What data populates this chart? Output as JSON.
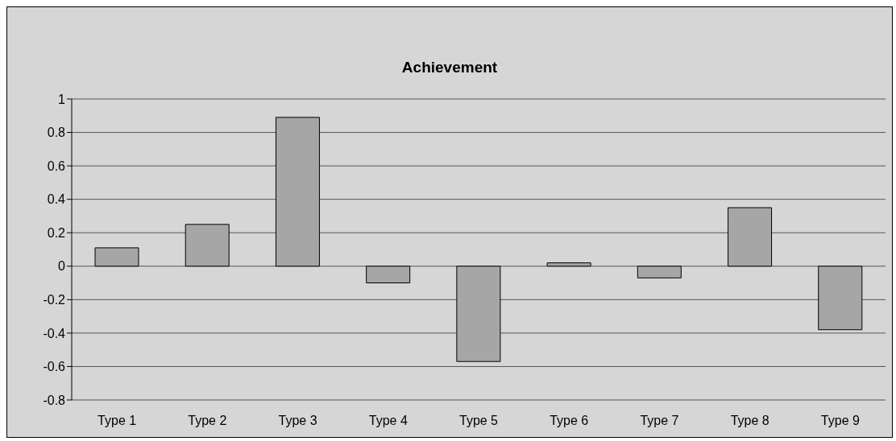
{
  "chart_data": {
    "type": "bar",
    "title": "Achievement",
    "categories": [
      "Type 1",
      "Type 2",
      "Type 3",
      "Type 4",
      "Type 5",
      "Type 6",
      "Type 7",
      "Type 8",
      "Type 9"
    ],
    "values": [
      0.11,
      0.25,
      0.89,
      -0.1,
      -0.57,
      0.02,
      -0.07,
      0.35,
      -0.38
    ],
    "color": "#a6a6a6",
    "ylim": [
      -0.8,
      1
    ],
    "yticks": [
      -0.8,
      -0.6,
      -0.4,
      -0.2,
      0,
      0.2,
      0.4,
      0.6,
      0.8,
      1
    ],
    "grid": "y"
  }
}
